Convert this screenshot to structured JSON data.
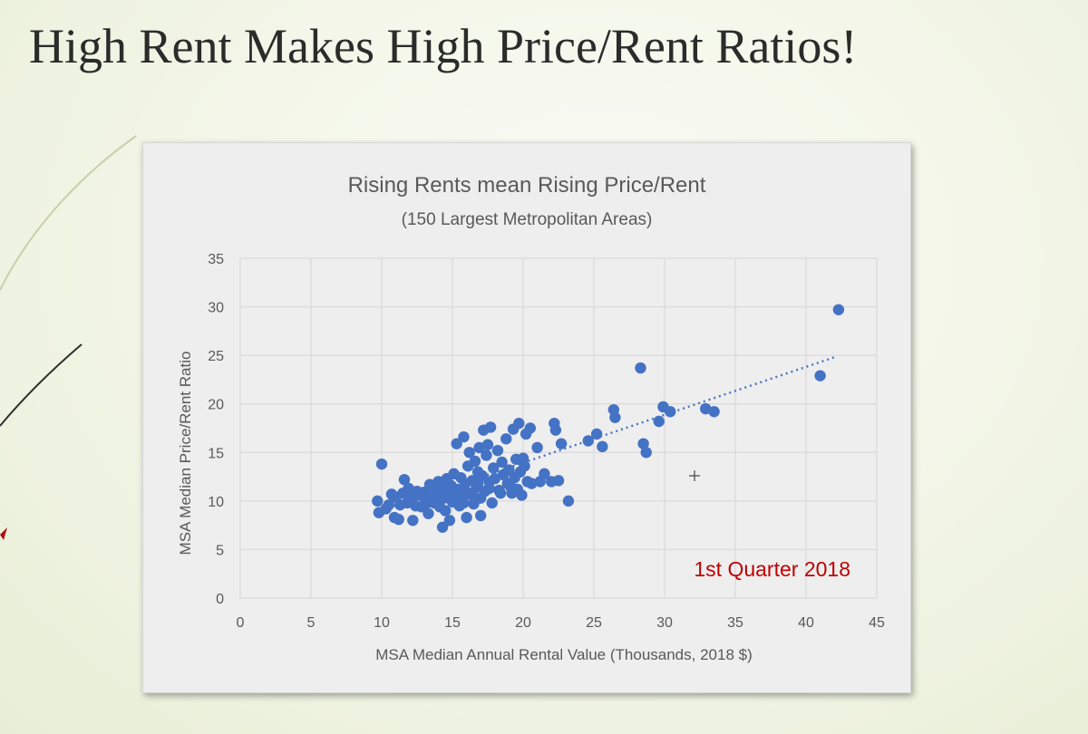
{
  "slide": {
    "title": "High Rent Makes High Price/Rent Ratios!"
  },
  "colors": {
    "marker": "#4472c4",
    "annotation": "#c00000",
    "text": "#595959",
    "panel": "#eeeeee"
  },
  "chart_data": {
    "type": "scatter",
    "title": "Rising Rents mean Rising Price/Rent",
    "subtitle": "(150 Largest Metropolitan Areas)",
    "xlabel": "MSA Median Annual Rental Value (Thousands, 2018 $)",
    "ylabel": "MSA Median Price/Rent Ratio",
    "xlim": [
      0,
      45
    ],
    "ylim": [
      0,
      35
    ],
    "xticks": [
      "0",
      "5",
      "10",
      "15",
      "20",
      "25",
      "30",
      "35",
      "40",
      "45"
    ],
    "yticks": [
      "0",
      "5",
      "10",
      "15",
      "20",
      "25",
      "30",
      "35"
    ],
    "grid": true,
    "annotation": "1st Quarter 2018",
    "trendline": {
      "style": "dotted",
      "from": [
        9.8,
        8.9
      ],
      "to": [
        42.2,
        24.9
      ]
    },
    "points": [
      [
        9.7,
        10.0
      ],
      [
        9.8,
        8.8
      ],
      [
        10.0,
        13.8
      ],
      [
        10.3,
        9.2
      ],
      [
        10.5,
        9.6
      ],
      [
        10.7,
        10.7
      ],
      [
        10.9,
        8.3
      ],
      [
        11.0,
        10.4
      ],
      [
        11.2,
        8.1
      ],
      [
        11.3,
        9.6
      ],
      [
        11.5,
        10.8
      ],
      [
        11.6,
        12.2
      ],
      [
        11.8,
        9.8
      ],
      [
        11.9,
        11.3
      ],
      [
        12.1,
        10.2
      ],
      [
        12.2,
        8.0
      ],
      [
        12.4,
        9.5
      ],
      [
        12.5,
        11.0
      ],
      [
        12.7,
        10.6
      ],
      [
        12.8,
        9.4
      ],
      [
        13.0,
        10.9
      ],
      [
        13.1,
        10.1
      ],
      [
        13.3,
        8.7
      ],
      [
        13.4,
        11.7
      ],
      [
        13.6,
        10.3
      ],
      [
        13.7,
        9.8
      ],
      [
        13.8,
        11.5
      ],
      [
        13.9,
        10.5
      ],
      [
        14.0,
        12.0
      ],
      [
        14.1,
        9.4
      ],
      [
        14.2,
        11.1
      ],
      [
        14.3,
        7.3
      ],
      [
        14.4,
        10.3
      ],
      [
        14.5,
        9.0
      ],
      [
        14.6,
        12.3
      ],
      [
        14.7,
        10.8
      ],
      [
        14.8,
        8.0
      ],
      [
        14.9,
        11.6
      ],
      [
        15.0,
        9.9
      ],
      [
        15.1,
        12.8
      ],
      [
        15.2,
        10.6
      ],
      [
        15.3,
        15.9
      ],
      [
        15.4,
        11.2
      ],
      [
        15.5,
        9.5
      ],
      [
        15.6,
        12.4
      ],
      [
        15.7,
        10.2
      ],
      [
        15.8,
        16.6
      ],
      [
        15.9,
        11.8
      ],
      [
        16.0,
        8.3
      ],
      [
        16.1,
        13.6
      ],
      [
        16.2,
        15.0
      ],
      [
        16.3,
        10.8
      ],
      [
        16.4,
        12.1
      ],
      [
        16.5,
        9.7
      ],
      [
        16.6,
        14.1
      ],
      [
        16.7,
        11.4
      ],
      [
        16.8,
        13.0
      ],
      [
        16.9,
        15.5
      ],
      [
        17.0,
        8.5
      ],
      [
        17.1,
        12.6
      ],
      [
        17.2,
        17.3
      ],
      [
        17.3,
        11.0
      ],
      [
        17.4,
        14.7
      ],
      [
        17.5,
        15.8
      ],
      [
        17.6,
        12.0
      ],
      [
        17.7,
        17.6
      ],
      [
        17.8,
        9.8
      ],
      [
        17.9,
        13.4
      ],
      [
        18.0,
        12.3
      ],
      [
        18.2,
        15.2
      ],
      [
        18.3,
        11.1
      ],
      [
        18.5,
        14.0
      ],
      [
        18.6,
        12.7
      ],
      [
        18.8,
        16.4
      ],
      [
        18.9,
        11.8
      ],
      [
        19.0,
        13.2
      ],
      [
        19.2,
        10.8
      ],
      [
        19.3,
        17.4
      ],
      [
        19.4,
        12.4
      ],
      [
        19.5,
        14.3
      ],
      [
        19.6,
        11.2
      ],
      [
        19.7,
        18.0
      ],
      [
        19.8,
        13.0
      ],
      [
        19.9,
        10.6
      ],
      [
        20.0,
        14.4
      ],
      [
        20.1,
        13.6
      ],
      [
        20.2,
        16.9
      ],
      [
        20.3,
        12.0
      ],
      [
        20.5,
        17.5
      ],
      [
        20.6,
        11.8
      ],
      [
        21.0,
        15.5
      ],
      [
        21.2,
        12.0
      ],
      [
        21.5,
        12.8
      ],
      [
        22.0,
        12.0
      ],
      [
        22.2,
        18.0
      ],
      [
        22.3,
        17.3
      ],
      [
        22.5,
        12.1
      ],
      [
        22.7,
        15.9
      ],
      [
        23.2,
        10.0
      ],
      [
        24.6,
        16.2
      ],
      [
        25.2,
        16.9
      ],
      [
        25.6,
        15.6
      ],
      [
        26.4,
        19.4
      ],
      [
        26.5,
        18.6
      ],
      [
        28.3,
        23.7
      ],
      [
        28.5,
        15.9
      ],
      [
        28.7,
        15.0
      ],
      [
        29.6,
        18.2
      ],
      [
        29.9,
        19.7
      ],
      [
        30.4,
        19.2
      ],
      [
        32.9,
        19.5
      ],
      [
        33.5,
        19.2
      ],
      [
        41.0,
        22.9
      ],
      [
        42.3,
        29.7
      ],
      [
        12.0,
        10.5
      ],
      [
        13.5,
        11.4
      ],
      [
        14.8,
        10.6
      ],
      [
        15.6,
        11.0
      ],
      [
        16.4,
        10.6
      ],
      [
        17.0,
        10.3
      ],
      [
        15.0,
        10.3
      ],
      [
        16.0,
        10.9
      ],
      [
        14.5,
        11.3
      ],
      [
        15.8,
        9.8
      ],
      [
        13.2,
        9.8
      ],
      [
        16.8,
        11.8
      ],
      [
        18.4,
        10.8
      ],
      [
        19.1,
        11.5
      ],
      [
        17.6,
        11.3
      ],
      [
        14.1,
        10.0
      ]
    ]
  }
}
